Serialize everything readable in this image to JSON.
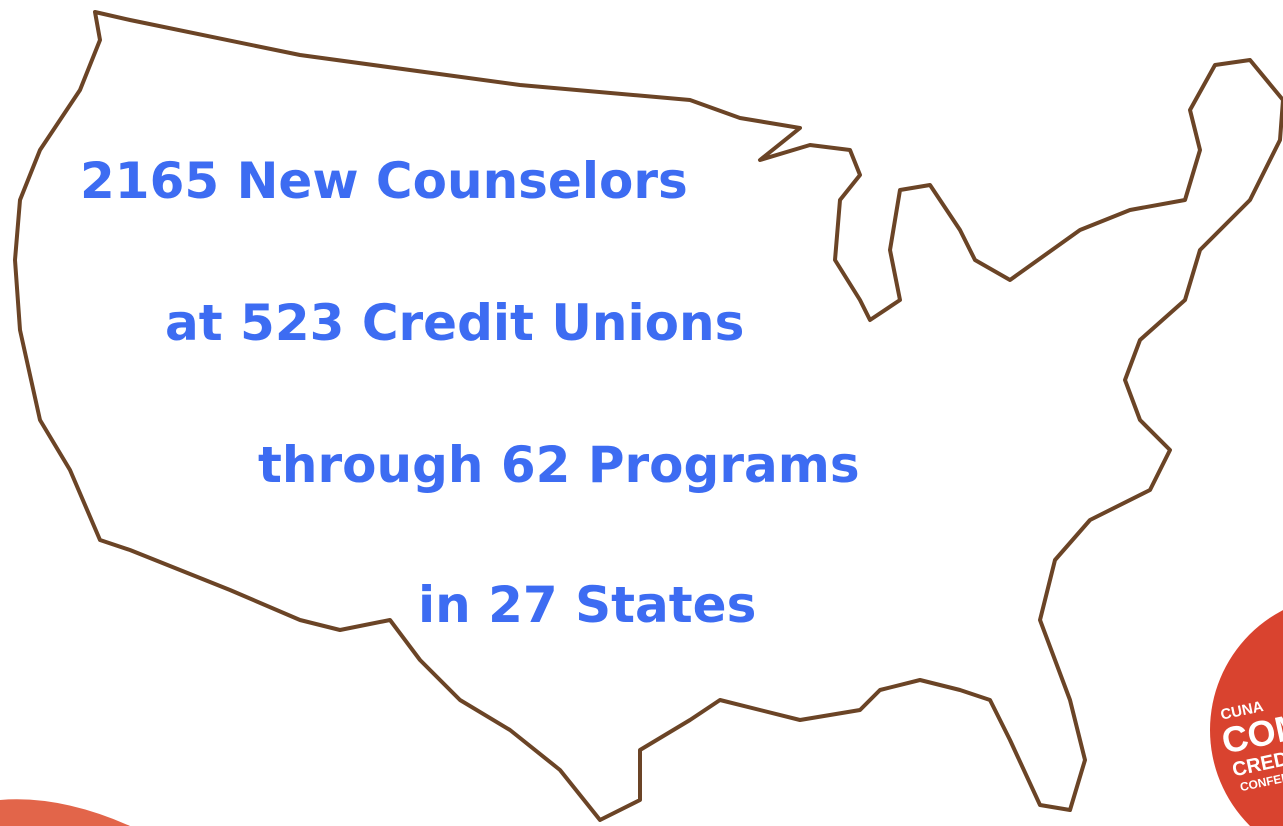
{
  "slide": {
    "lines": [
      "2165 New Counselors",
      "at 523 Credit Unions",
      "through 62 Programs",
      "in 27 States"
    ],
    "logo": [
      "CUNA",
      "COMM",
      "CREDIT U",
      "CONFER"
    ]
  }
}
